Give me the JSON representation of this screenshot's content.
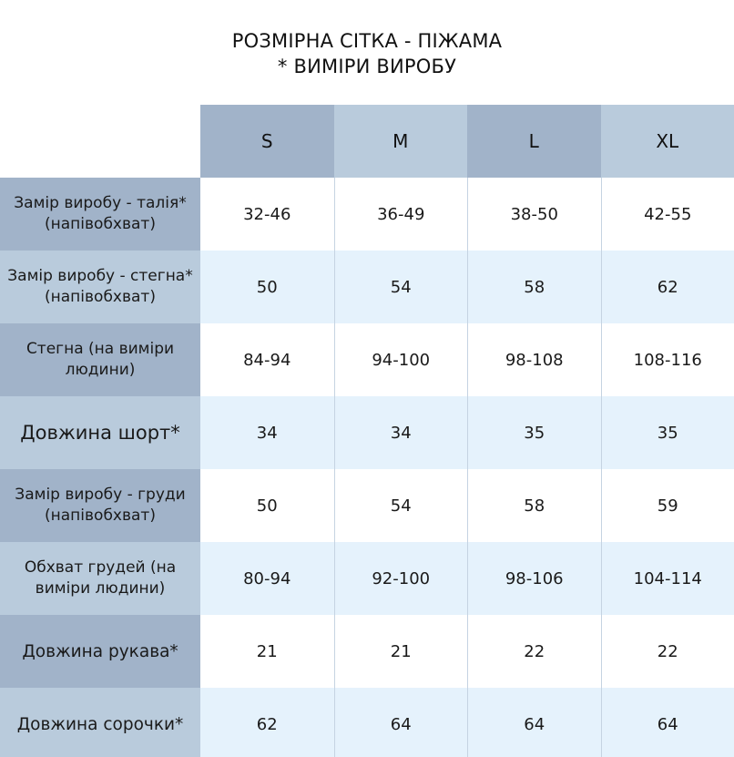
{
  "title": {
    "line1": "РОЗМІРНА СІТКА - ПІЖАМА",
    "line2": "* ВИМІРИ ВИРОБУ"
  },
  "colors": {
    "header_dark": "#a1b3c9",
    "header_light": "#b9cbdc",
    "row_tint": "#e5f2fc",
    "row_white": "#ffffff"
  },
  "table": {
    "sizes": [
      "S",
      "M",
      "L",
      "XL"
    ],
    "rows": [
      {
        "label": "Замір виробу - талія*  (напівобхват)",
        "values": [
          "32-46",
          "36-49",
          "38-50",
          "42-55"
        ]
      },
      {
        "label": "Замір виробу - стегна* (напівобхват)",
        "values": [
          "50",
          "54",
          "58",
          "62"
        ]
      },
      {
        "label": "Стегна (на виміри людини)",
        "values": [
          "84-94",
          "94-100",
          "98-108",
          "108-116"
        ]
      },
      {
        "label": "Довжина шорт*",
        "values": [
          "34",
          "34",
          "35",
          "35"
        ]
      },
      {
        "label": "Замір виробу - груди  (напівобхват)",
        "values": [
          "50",
          "54",
          "58",
          "59"
        ]
      },
      {
        "label": "Обхват грудей (на виміри людини)",
        "values": [
          "80-94",
          "92-100",
          "98-106",
          "104-114"
        ]
      },
      {
        "label": "Довжина рукава*",
        "values": [
          "21",
          "21",
          "22",
          "22"
        ]
      },
      {
        "label": "Довжина сорочки*",
        "values": [
          "62",
          "64",
          "64",
          "64"
        ]
      }
    ]
  }
}
